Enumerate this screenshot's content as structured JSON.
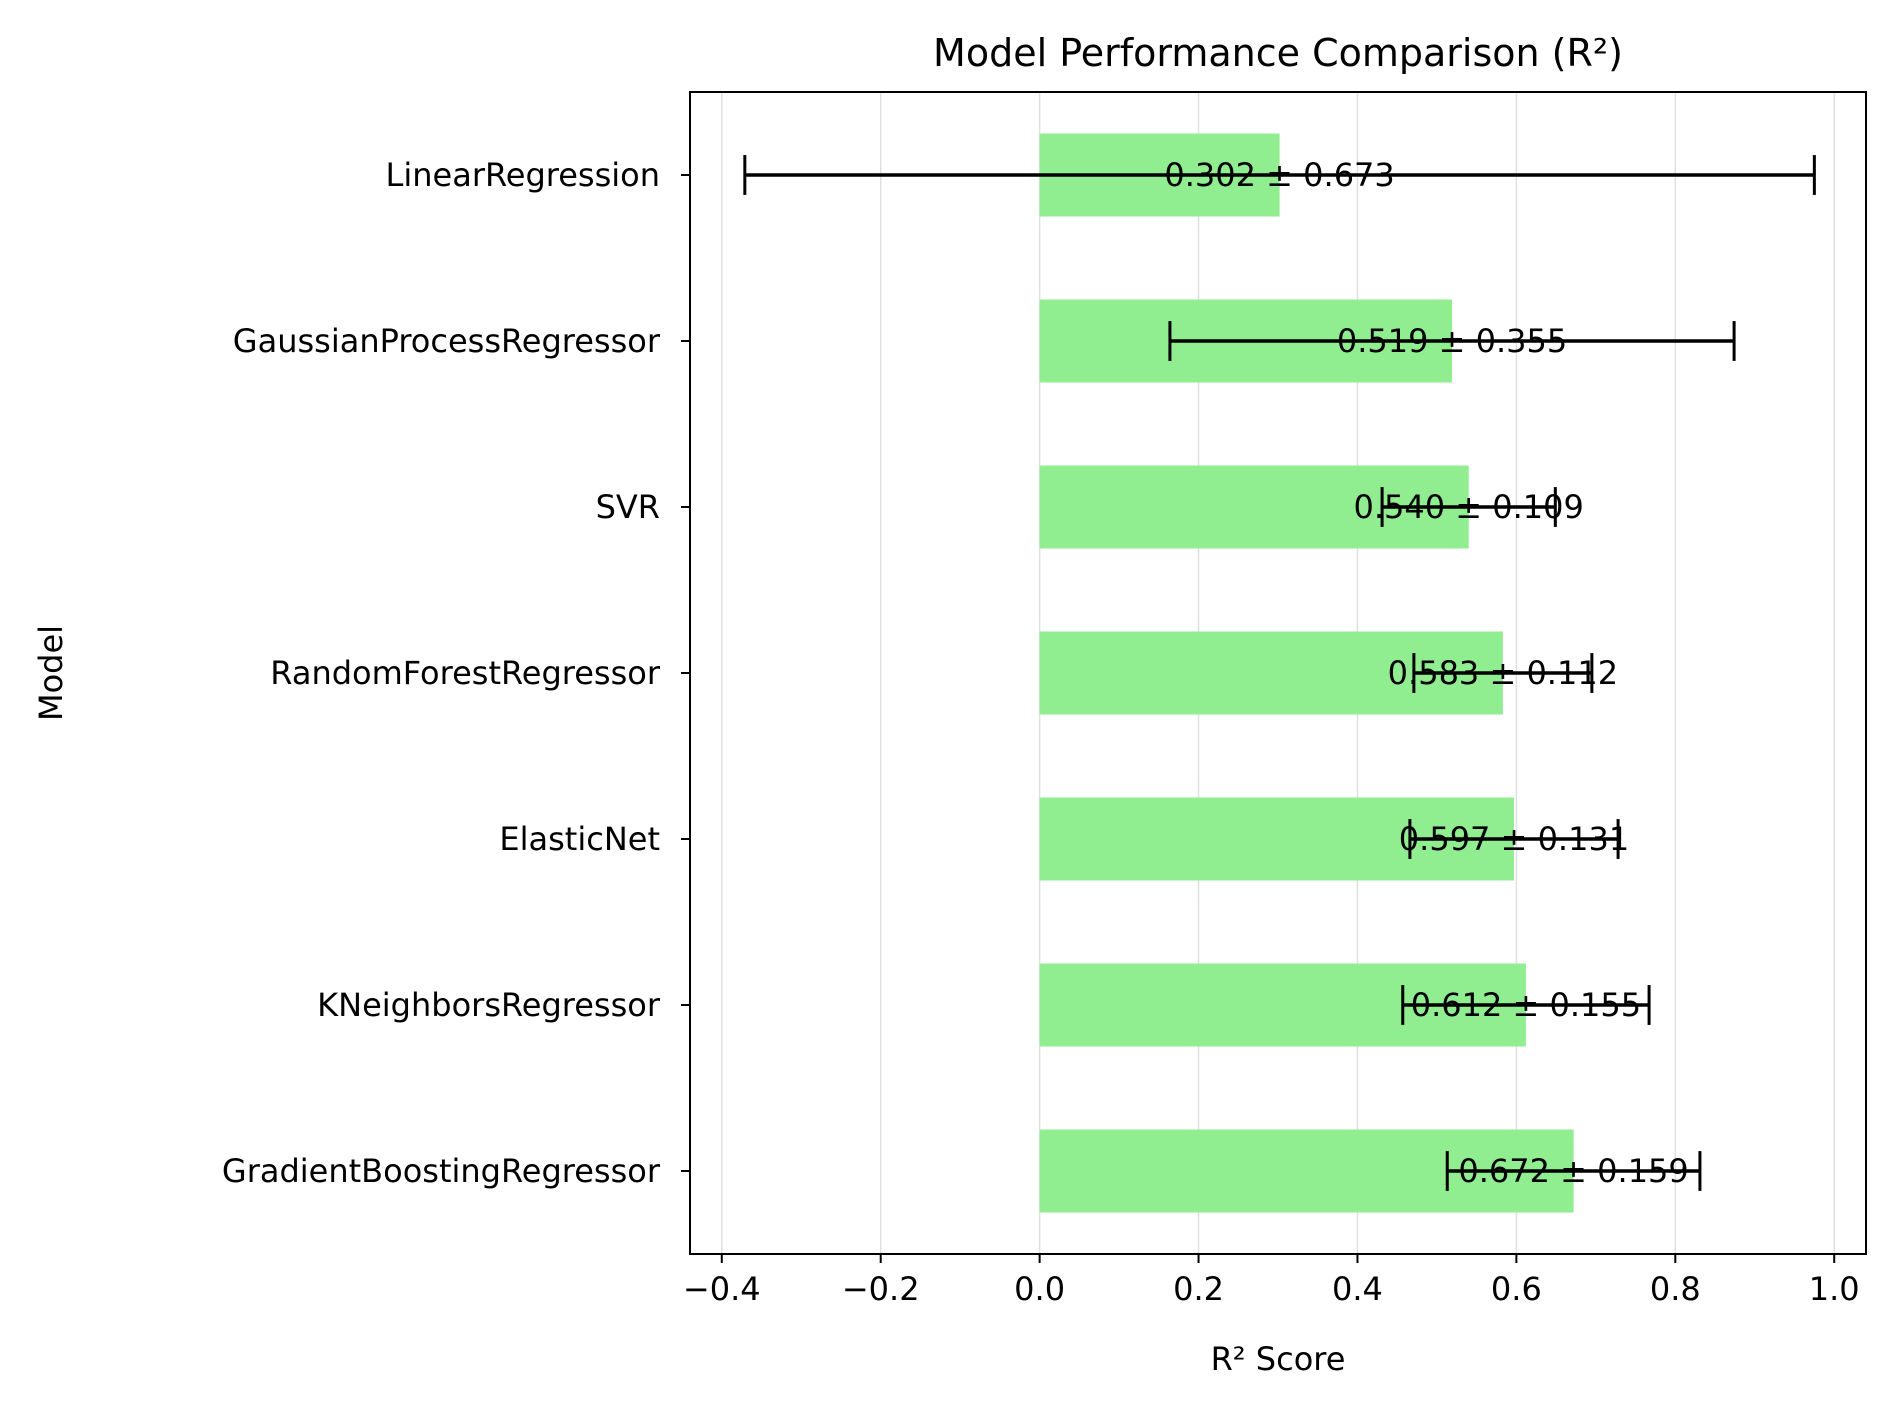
{
  "chart_data": {
    "type": "bar",
    "orientation": "horizontal",
    "title": "Model Performance Comparison (R²)",
    "xlabel": "R² Score",
    "ylabel": "Model",
    "xlim": [
      -0.44,
      1.04
    ],
    "xticks": [
      -0.4,
      -0.2,
      0.0,
      0.2,
      0.4,
      0.6,
      0.8,
      1.0
    ],
    "xtick_labels": [
      "−0.4",
      "−0.2",
      "0.0",
      "0.2",
      "0.4",
      "0.6",
      "0.8",
      "1.0"
    ],
    "grid": "x",
    "bar_color": "#90ee90",
    "error_color": "#000000",
    "grid_color": "#e0e0e0",
    "categories": [
      "LinearRegression",
      "GaussianProcessRegressor",
      "SVR",
      "RandomForestRegressor",
      "ElasticNet",
      "KNeighborsRegressor",
      "GradientBoostingRegressor"
    ],
    "values": [
      0.302,
      0.519,
      0.54,
      0.583,
      0.597,
      0.612,
      0.672
    ],
    "errors": [
      0.673,
      0.355,
      0.109,
      0.112,
      0.131,
      0.155,
      0.159
    ],
    "value_labels": [
      "0.302 ± 0.673",
      "0.519 ± 0.355",
      "0.540 ± 0.109",
      "0.583 ± 0.112",
      "0.597 ± 0.131",
      "0.612 ± 0.155",
      "0.672 ± 0.159"
    ]
  }
}
